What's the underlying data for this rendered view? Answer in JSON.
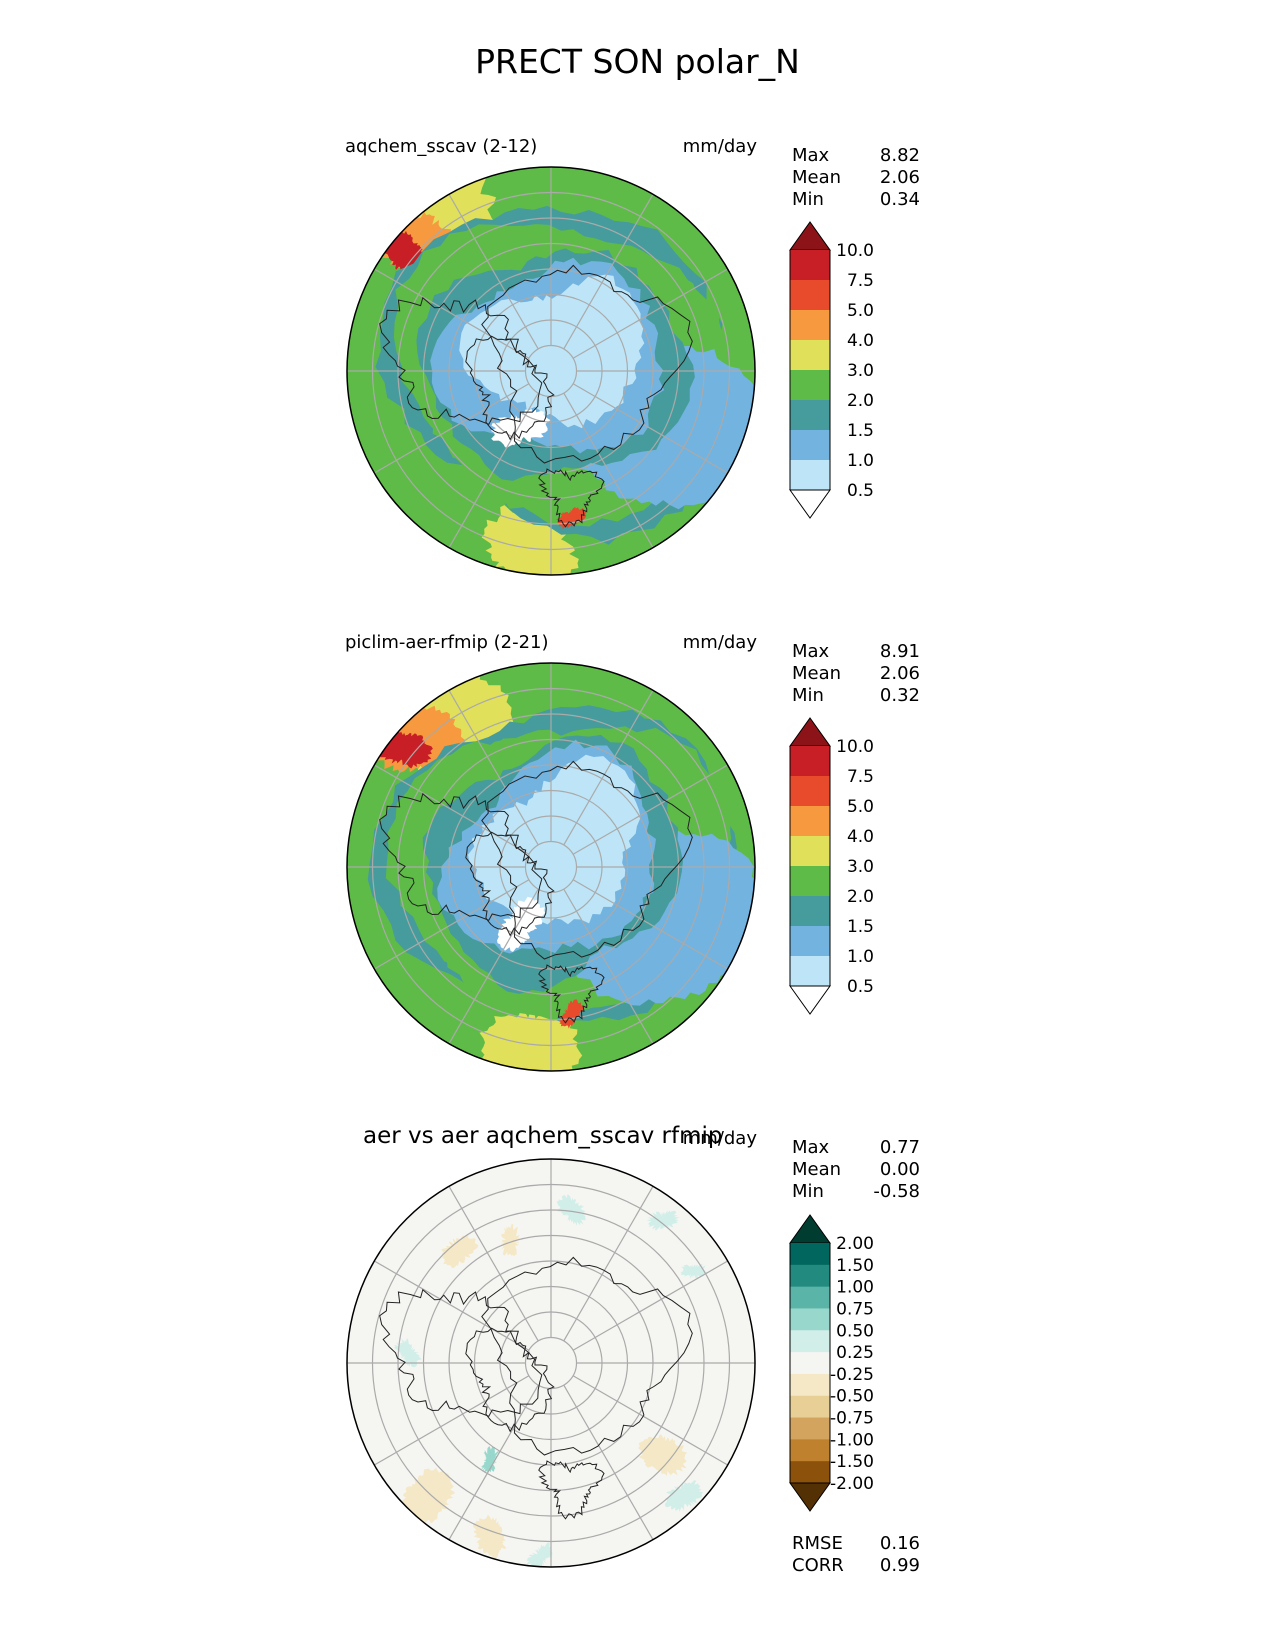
{
  "main_title": "PRECT SON polar_N",
  "panels": [
    {
      "title": "aqchem_sscav (2-12)",
      "units": "mm/day",
      "stats": [
        {
          "label": "Max",
          "value": "8.82"
        },
        {
          "label": "Mean",
          "value": "2.06"
        },
        {
          "label": "Min",
          "value": "0.34"
        }
      ]
    },
    {
      "title": "piclim-aer-rfmip (2-21)",
      "units": "mm/day",
      "stats": [
        {
          "label": "Max",
          "value": "8.91"
        },
        {
          "label": "Mean",
          "value": "2.06"
        },
        {
          "label": "Min",
          "value": "0.32"
        }
      ]
    },
    {
      "title": "aer vs aer aqchem_sscav rfmip",
      "units": "mm/day",
      "stats": [
        {
          "label": "Max",
          "value": "0.77"
        },
        {
          "label": "Mean",
          "value": "0.00"
        },
        {
          "label": "Min",
          "value": "-0.58"
        }
      ],
      "extra_stats": [
        {
          "label": "RMSE",
          "value": "0.16"
        },
        {
          "label": "CORR",
          "value": "0.99"
        }
      ]
    }
  ],
  "chart_data": [
    {
      "type": "heatmap",
      "title": "aqchem_sscav (2-12)",
      "projection": "north polar stereographic",
      "units": "mm/day",
      "colorbar": {
        "levels": [
          "0.5",
          "1.0",
          "1.5",
          "2.0",
          "3.0",
          "4.0",
          "5.0",
          "7.5",
          "10.0"
        ],
        "colors": [
          "#ffffff",
          "#bde5f7",
          "#73b3e0",
          "#469c9c",
          "#5fbb47",
          "#e0e05a",
          "#f6993f",
          "#e84a2c",
          "#c81e25",
          "#8c1419"
        ],
        "extend": "both"
      },
      "stats": {
        "max": 8.82,
        "mean": 2.06,
        "min": 0.34
      }
    },
    {
      "type": "heatmap",
      "title": "piclim-aer-rfmip (2-21)",
      "projection": "north polar stereographic",
      "units": "mm/day",
      "colorbar": {
        "levels": [
          "0.5",
          "1.0",
          "1.5",
          "2.0",
          "3.0",
          "4.0",
          "5.0",
          "7.5",
          "10.0"
        ],
        "colors": [
          "#ffffff",
          "#bde5f7",
          "#73b3e0",
          "#469c9c",
          "#5fbb47",
          "#e0e05a",
          "#f6993f",
          "#e84a2c",
          "#c81e25",
          "#8c1419"
        ],
        "extend": "both"
      },
      "stats": {
        "max": 8.91,
        "mean": 2.06,
        "min": 0.32
      }
    },
    {
      "type": "heatmap",
      "title": "aer vs aer aqchem_sscav rfmip",
      "projection": "north polar stereographic",
      "units": "mm/day",
      "colorbar": {
        "levels": [
          "-2.00",
          "-1.50",
          "-1.00",
          "-0.75",
          "-0.50",
          "-0.25",
          "0.25",
          "0.50",
          "0.75",
          "1.00",
          "1.50",
          "2.00"
        ],
        "colors": [
          "#543005",
          "#8c510a",
          "#bf812d",
          "#d2a45e",
          "#e8cf95",
          "#f5e8c6",
          "#f5f5f2",
          "#d2eee9",
          "#98d8cc",
          "#5ab4a8",
          "#238a80",
          "#01665e",
          "#003c30"
        ],
        "extend": "both"
      },
      "stats": {
        "max": 0.77,
        "mean": 0.0,
        "min": -0.58,
        "rmse": 0.16,
        "corr": 0.99
      }
    }
  ]
}
